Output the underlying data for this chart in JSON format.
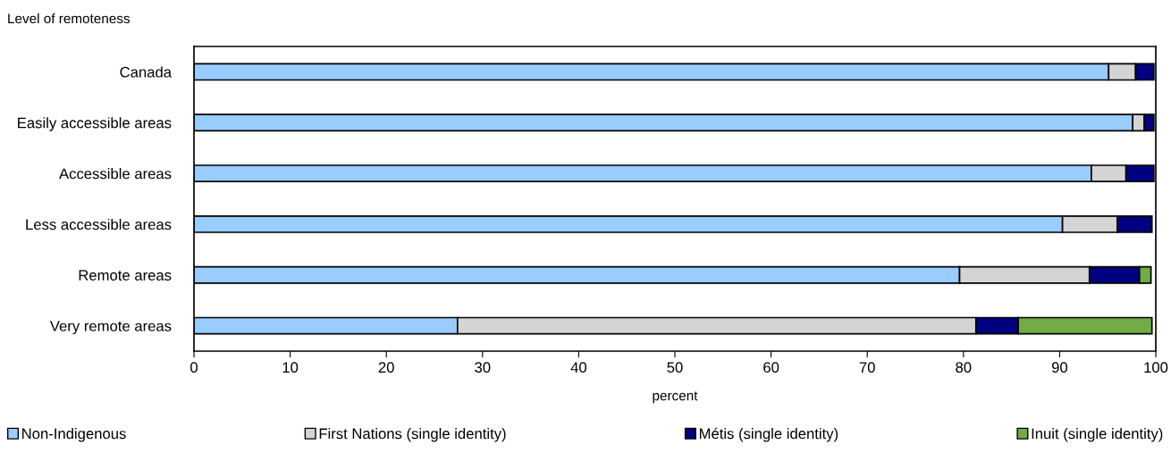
{
  "chart_data": {
    "type": "bar",
    "orientation": "horizontal",
    "stacked": true,
    "ylabel": "Level of remoteness",
    "xlabel": "percent",
    "categories": [
      "Canada",
      "Easily accessible areas",
      "Accessible areas",
      "Less accessible areas",
      "Remote areas",
      "Very remote areas"
    ],
    "series": [
      {
        "name": "Non-Indigenous",
        "color": "#99ccff",
        "values": [
          95.1,
          97.6,
          93.3,
          90.3,
          79.6,
          27.4
        ]
      },
      {
        "name": "First Nations (single identity)",
        "color": "#d4d4d4",
        "values": [
          2.8,
          1.2,
          3.6,
          5.7,
          13.5,
          53.9
        ]
      },
      {
        "name": "Métis (single identity)",
        "color": "#000080",
        "values": [
          1.9,
          1.0,
          2.9,
          3.6,
          5.2,
          4.4
        ]
      },
      {
        "name": "Inuit (single identity)",
        "color": "#70ad47",
        "values": [
          null,
          null,
          null,
          null,
          1.2,
          13.9
        ]
      }
    ],
    "xlim": [
      0,
      100
    ],
    "xticks": [
      0,
      10,
      20,
      30,
      40,
      50,
      60,
      70,
      80,
      90,
      100
    ],
    "grid": false,
    "legend": "bottom"
  }
}
